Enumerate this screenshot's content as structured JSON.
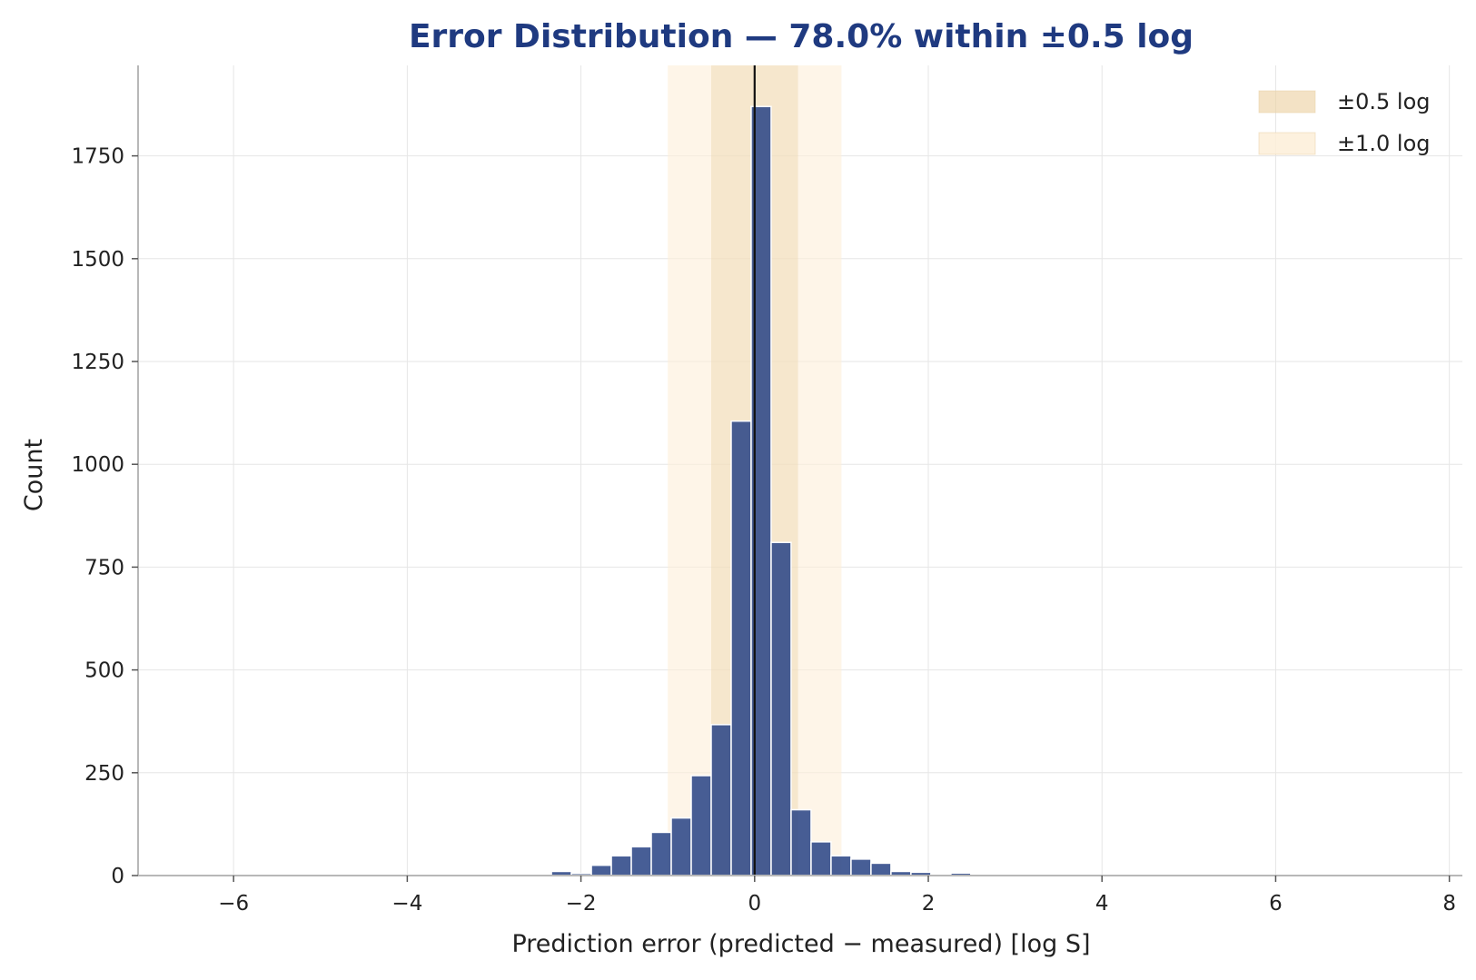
{
  "chart_data": {
    "type": "bar",
    "title": "Error Distribution — 78.0% within ±0.5 log",
    "xlabel": "Prediction error (predicted − measured) [log S]",
    "ylabel": "Count",
    "xlim": [
      -7.1,
      8.15
    ],
    "ylim": [
      0,
      1970
    ],
    "x_ticks": [
      -6,
      -4,
      -2,
      0,
      2,
      4,
      6,
      8
    ],
    "x_tick_labels": [
      "−6",
      "−4",
      "−2",
      "0",
      "2",
      "4",
      "6",
      "8"
    ],
    "y_ticks": [
      0,
      250,
      500,
      750,
      1000,
      1250,
      1500,
      1750
    ],
    "y_tick_labels": [
      "0",
      "250",
      "500",
      "750",
      "1000",
      "1250",
      "1500",
      "1750"
    ],
    "grid": true,
    "legend_position": "top-right",
    "bin_width": 0.23,
    "bins": [
      {
        "x": -6.48,
        "value": 0
      },
      {
        "x": -6.25,
        "value": 0
      },
      {
        "x": -6.02,
        "value": 0
      },
      {
        "x": -5.79,
        "value": 0
      },
      {
        "x": -5.56,
        "value": 0
      },
      {
        "x": -5.33,
        "value": 0
      },
      {
        "x": -5.1,
        "value": 0
      },
      {
        "x": -4.87,
        "value": 0
      },
      {
        "x": -4.64,
        "value": 0
      },
      {
        "x": -4.41,
        "value": 0
      },
      {
        "x": -4.18,
        "value": 0
      },
      {
        "x": -3.95,
        "value": 0
      },
      {
        "x": -3.72,
        "value": 0
      },
      {
        "x": -3.49,
        "value": 0
      },
      {
        "x": -3.26,
        "value": 0
      },
      {
        "x": -3.03,
        "value": 0
      },
      {
        "x": -2.8,
        "value": 0
      },
      {
        "x": -2.57,
        "value": 0
      },
      {
        "x": -2.34,
        "value": 10
      },
      {
        "x": -2.11,
        "value": 5
      },
      {
        "x": -1.88,
        "value": 25
      },
      {
        "x": -1.65,
        "value": 48
      },
      {
        "x": -1.42,
        "value": 70
      },
      {
        "x": -1.19,
        "value": 105
      },
      {
        "x": -0.96,
        "value": 140
      },
      {
        "x": -0.73,
        "value": 243
      },
      {
        "x": -0.5,
        "value": 367
      },
      {
        "x": -0.27,
        "value": 1105
      },
      {
        "x": -0.04,
        "value": 1870
      },
      {
        "x": 0.19,
        "value": 810
      },
      {
        "x": 0.42,
        "value": 160
      },
      {
        "x": 0.65,
        "value": 82
      },
      {
        "x": 0.88,
        "value": 48
      },
      {
        "x": 1.11,
        "value": 40
      },
      {
        "x": 1.34,
        "value": 30
      },
      {
        "x": 1.57,
        "value": 10
      },
      {
        "x": 1.8,
        "value": 8
      },
      {
        "x": 2.03,
        "value": 2
      },
      {
        "x": 2.26,
        "value": 6
      },
      {
        "x": 2.49,
        "value": 2
      },
      {
        "x": 2.72,
        "value": 0
      },
      {
        "x": 2.95,
        "value": 0
      },
      {
        "x": 3.18,
        "value": 0
      },
      {
        "x": 3.41,
        "value": 0
      },
      {
        "x": 3.64,
        "value": 0
      },
      {
        "x": 3.87,
        "value": 0
      },
      {
        "x": 4.1,
        "value": 0
      },
      {
        "x": 4.33,
        "value": 0
      },
      {
        "x": 4.56,
        "value": 0
      },
      {
        "x": 4.79,
        "value": 0
      },
      {
        "x": 5.02,
        "value": 0
      },
      {
        "x": 5.25,
        "value": 0
      },
      {
        "x": 5.48,
        "value": 0
      },
      {
        "x": 5.71,
        "value": 0
      },
      {
        "x": 5.94,
        "value": 0
      },
      {
        "x": 6.17,
        "value": 0
      },
      {
        "x": 6.4,
        "value": 0
      },
      {
        "x": 6.63,
        "value": 0
      },
      {
        "x": 6.86,
        "value": 0
      },
      {
        "x": 7.09,
        "value": 0
      },
      {
        "x": 7.32,
        "value": 0
      },
      {
        "x": 7.55,
        "value": 0
      },
      {
        "x": 7.78,
        "value": 0
      }
    ],
    "bands": [
      {
        "label": "±1.0 log",
        "range": [
          -1.0,
          1.0
        ],
        "color": "#fdefd8",
        "opacity": 0.6
      },
      {
        "label": "±0.5 log",
        "range": [
          -0.5,
          0.5
        ],
        "color": "#ecd3a6",
        "opacity": 0.4
      }
    ],
    "zero_line": 0,
    "bar_color": "#2e4887",
    "bar_edge_color": "#ffffff"
  }
}
